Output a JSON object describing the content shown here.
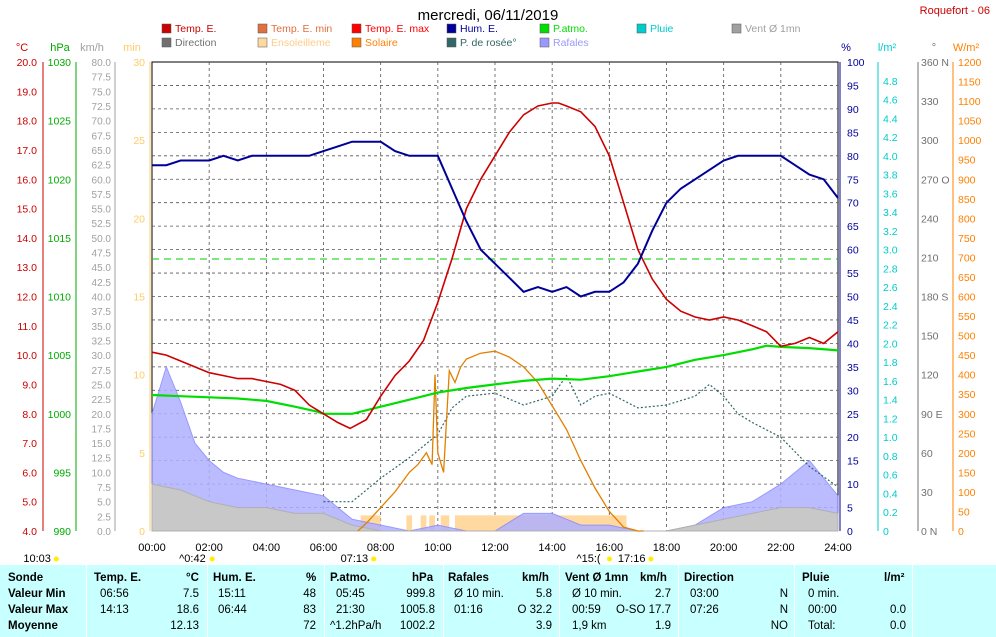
{
  "title": "mercredi, 06/11/2019",
  "station": "Roquefort - 06",
  "axes_units": {
    "temp": "°C",
    "pressure": "hPa",
    "wind": "km/h",
    "sunshine_min": "min",
    "humidity": "%",
    "rain": "l/m²",
    "direction": "°",
    "solar": "W/m²"
  },
  "legend": [
    {
      "label": "Temp. E.",
      "color": "#cc0000"
    },
    {
      "label": "Temp. E. min",
      "color": "#e07040"
    },
    {
      "label": "Temp. E. max",
      "color": "#ff0000"
    },
    {
      "label": "Hum. E.",
      "color": "#000099"
    },
    {
      "label": "P.atmo.",
      "color": "#00dd00"
    },
    {
      "label": "Pluie",
      "color": "#00cccc"
    },
    {
      "label": "Vent Ø 1mn",
      "color": "#a0a0a0"
    },
    {
      "label": "Direction",
      "color": "#707070"
    },
    {
      "label": "Ensoleilleme",
      "color": "#ffd9a0"
    },
    {
      "label": "Solaire",
      "color": "#ff8000"
    },
    {
      "label": "P. de rosée°",
      "color": "#336666"
    },
    {
      "label": "Rafales",
      "color": "#9999ff"
    }
  ],
  "colors": {
    "temp": "#cc0000",
    "hum": "#000099",
    "press": "#00dd00",
    "rain": "#00cccc",
    "solar": "#e08000",
    "sun": "#ffd9a0",
    "dew": "#336666",
    "gust": "#8888ff",
    "wind": "#b8b8b8",
    "dir": "#707070",
    "table_bg": "#c8ffff"
  },
  "chart_data": {
    "type": "line",
    "title": "mercredi, 06/11/2019",
    "grid": true,
    "x_ticks": [
      "00:00",
      "02:00",
      "04:00",
      "06:00",
      "08:00",
      "10:00",
      "12:00",
      "14:00",
      "16:00",
      "18:00",
      "20:00",
      "22:00",
      "24:00"
    ],
    "x_range_hours": [
      0,
      24
    ],
    "axes": {
      "temp_c": {
        "range": [
          4,
          20
        ],
        "ticks": [
          "20.0",
          "19.0",
          "18.0",
          "17.0",
          "16.0",
          "15.0",
          "14.0",
          "13.0",
          "12.0",
          "11.0",
          "10.0",
          "9.0",
          "8.0",
          "7.0",
          "6.0",
          "5.0",
          "4.0"
        ]
      },
      "pressure_hpa": {
        "range": [
          990,
          1030
        ],
        "ticks": [
          "1030",
          "1025",
          "1020",
          "1015",
          "1010",
          "1005",
          "1000",
          "995",
          "990"
        ]
      },
      "wind_kmh": {
        "range": [
          0,
          80
        ],
        "step": 2.5
      },
      "sunshine_min": {
        "range": [
          0,
          30
        ],
        "ticks": [
          "30",
          "25",
          "20",
          "15",
          "10",
          "5",
          "0"
        ]
      },
      "humidity_pct": {
        "range": [
          0,
          100
        ],
        "ticks": [
          "100",
          "95",
          "90",
          "85",
          "80",
          "75",
          "70",
          "65",
          "60",
          "55",
          "50",
          "45",
          "40",
          "35",
          "30",
          "25",
          "20",
          "15",
          "10",
          "5",
          "0"
        ]
      },
      "rain_lm2": {
        "range": [
          0,
          5
        ],
        "ticks": [
          "4.8",
          "4.6",
          "4.4",
          "4.2",
          "4.0",
          "3.8",
          "3.6",
          "3.4",
          "3.2",
          "3.0",
          "2.8",
          "2.6",
          "2.4",
          "2.2",
          "2.0",
          "1.8",
          "1.6",
          "1.4",
          "1.2",
          "1.0",
          "0.8",
          "0.6",
          "0.4",
          "0.2",
          "0"
        ]
      },
      "direction_deg": {
        "range": [
          0,
          360
        ],
        "ticks": [
          "360 N",
          "330",
          "300",
          "270 O",
          "240",
          "210",
          "180 S",
          "150",
          "120",
          "90 E",
          "60",
          "30",
          "0 N"
        ]
      },
      "solar_wm2": {
        "range": [
          0,
          1200
        ],
        "ticks": [
          "1200",
          "1150",
          "1100",
          "1050",
          "1000",
          "950",
          "900",
          "850",
          "800",
          "750",
          "700",
          "650",
          "600",
          "550",
          "500",
          "450",
          "400",
          "350",
          "300",
          "250",
          "200",
          "150",
          "100",
          "50",
          "0"
        ]
      }
    },
    "series": [
      {
        "name": "Temp. E.",
        "axis": "temp_c",
        "x": [
          0,
          0.5,
          1,
          1.5,
          2,
          2.5,
          3,
          3.5,
          4,
          4.5,
          5,
          5.5,
          6,
          6.5,
          6.93,
          7.5,
          8,
          8.5,
          9,
          9.5,
          10,
          10.5,
          11,
          11.5,
          12,
          12.5,
          13,
          13.5,
          14,
          14.22,
          14.5,
          15,
          15.5,
          16,
          16.5,
          17,
          17.5,
          18,
          18.5,
          19,
          19.5,
          20,
          20.5,
          21,
          21.5,
          22,
          22.5,
          23,
          23.5,
          24
        ],
        "y": [
          10.1,
          10.0,
          9.8,
          9.6,
          9.4,
          9.3,
          9.2,
          9.2,
          9.1,
          9.0,
          8.8,
          8.3,
          8.0,
          7.7,
          7.5,
          7.8,
          8.6,
          9.3,
          9.8,
          10.5,
          11.8,
          13.3,
          15.0,
          16.0,
          16.8,
          17.6,
          18.2,
          18.5,
          18.6,
          18.6,
          18.5,
          18.3,
          17.8,
          16.8,
          15.2,
          13.6,
          12.6,
          11.9,
          11.5,
          11.3,
          11.2,
          11.3,
          11.2,
          11.0,
          10.8,
          10.3,
          10.4,
          10.6,
          10.4,
          10.8
        ]
      },
      {
        "name": "Hum. E.",
        "axis": "humidity_pct",
        "x": [
          0,
          0.5,
          1,
          1.5,
          2,
          2.5,
          3,
          3.5,
          4,
          4.5,
          5,
          5.5,
          6,
          6.5,
          7,
          7.5,
          8,
          8.5,
          9,
          9.5,
          10,
          10.5,
          11,
          11.5,
          12,
          12.5,
          13,
          13.5,
          14,
          14.5,
          15,
          15.5,
          16,
          16.5,
          17,
          17.5,
          18,
          18.5,
          19,
          19.5,
          20,
          20.5,
          21,
          21.5,
          22,
          22.5,
          23,
          23.5,
          24
        ],
        "y": [
          78,
          78,
          79,
          79,
          79,
          80,
          79,
          80,
          80,
          80,
          80,
          80,
          81,
          82,
          83,
          83,
          83,
          81,
          80,
          80,
          80,
          73,
          66,
          60,
          57,
          54,
          51,
          52,
          51,
          52,
          50,
          51,
          51,
          53,
          57,
          64,
          70,
          73,
          75,
          77,
          79,
          80,
          80,
          80,
          80,
          78,
          76,
          75,
          71
        ]
      },
      {
        "name": "P.atmo.",
        "axis": "pressure_hpa",
        "x": [
          0,
          1,
          2,
          3,
          4,
          5,
          5.75,
          6,
          7,
          8,
          9,
          10,
          11,
          12,
          13,
          14,
          15,
          16,
          17,
          18,
          19,
          20,
          21,
          21.5,
          22,
          23,
          24
        ],
        "y": [
          1001.6,
          1001.5,
          1001.4,
          1001.3,
          1001.1,
          1000.6,
          1000.2,
          1000.0,
          1000.0,
          1000.6,
          1001.2,
          1001.8,
          1002.2,
          1002.5,
          1002.8,
          1003.0,
          1002.9,
          1003.2,
          1003.6,
          1004.0,
          1004.6,
          1005.0,
          1005.5,
          1005.8,
          1005.7,
          1005.6,
          1005.4
        ]
      },
      {
        "name": "Solaire",
        "axis": "solar_wm2",
        "x": [
          7.2,
          7.5,
          8,
          8.5,
          9,
          9.3,
          9.6,
          9.8,
          9.9,
          10.0,
          10.2,
          10.4,
          10.6,
          10.8,
          11.0,
          11.5,
          12,
          12.5,
          13,
          13.5,
          14,
          14.5,
          15,
          15.5,
          16,
          16.5,
          17,
          17.2
        ],
        "y": [
          0,
          20,
          60,
          100,
          150,
          170,
          200,
          170,
          400,
          200,
          150,
          410,
          380,
          420,
          440,
          455,
          460,
          445,
          420,
          380,
          320,
          260,
          180,
          110,
          50,
          10,
          0,
          0
        ]
      },
      {
        "name": "P. de rosée°",
        "axis": "temp_c",
        "x": [
          6,
          7,
          8,
          9,
          10,
          10.5,
          11,
          12,
          13,
          14,
          14.5,
          15,
          15.5,
          16,
          17,
          18,
          19,
          19.5,
          20,
          20.5,
          21,
          22,
          23,
          24
        ],
        "y": [
          5.0,
          5.0,
          5.8,
          6.5,
          7.3,
          8.2,
          8.6,
          8.7,
          8.3,
          8.6,
          9.3,
          8.3,
          8.6,
          8.7,
          8.2,
          8.3,
          8.6,
          9.0,
          8.6,
          8.0,
          7.7,
          7.2,
          6.2,
          5.5
        ]
      },
      {
        "name": "Ensoleilleme",
        "axis": "sunshine_min",
        "x_start": [
          7.3,
          8.9,
          9.4,
          9.7,
          10.1,
          10.6
        ],
        "x_end": [
          8.0,
          9.1,
          9.6,
          9.9,
          10.4,
          16.6
        ],
        "y": [
          1,
          1,
          1,
          1,
          1,
          1
        ]
      },
      {
        "name": "Vent Ø 1mn",
        "axis": "wind_kmh",
        "x": [
          0,
          1,
          2,
          3,
          4,
          5,
          6,
          7,
          8,
          9,
          10,
          11,
          12,
          13,
          14,
          15,
          16,
          17,
          18,
          19,
          20,
          21,
          22,
          23,
          24
        ],
        "y": [
          8,
          7,
          5,
          4,
          4,
          3,
          3,
          1,
          0,
          0,
          0,
          0,
          0,
          0,
          0,
          0,
          0,
          0,
          0,
          1,
          2,
          3,
          4,
          4,
          3
        ]
      },
      {
        "name": "Rafales",
        "axis": "wind_kmh",
        "x": [
          0,
          0.5,
          1,
          1.5,
          2,
          2.5,
          3,
          4,
          5,
          6,
          7,
          8,
          9,
          10,
          11,
          12,
          13,
          14,
          15,
          16,
          17,
          18,
          19,
          20,
          21,
          22,
          23,
          24
        ],
        "y": [
          20,
          28,
          22,
          15,
          12,
          10,
          9,
          8,
          7,
          6,
          2,
          1,
          0,
          1,
          0,
          0,
          3,
          3,
          1,
          1,
          0,
          0,
          1,
          4,
          5,
          8,
          12,
          6
        ]
      }
    ]
  },
  "date_marks": [
    {
      "label": "10:03",
      "x_hour": -4.5
    },
    {
      "label": "^0:42",
      "x_hour": 0.95
    },
    {
      "label": "07:13",
      "x_hour": 6.6
    },
    {
      "label": "^15:(",
      "x_hour": 14.85
    },
    {
      "label": "17:16",
      "x_hour": 16.3
    }
  ],
  "table": {
    "headers": [
      "Sonde",
      "Temp. E.",
      "°C",
      "Hum. E.",
      "%",
      "P.atmo.",
      "hPa",
      "Rafales",
      "km/h",
      "Vent Ø 1mn",
      "km/h",
      "Direction",
      "Pluie",
      "l/m²"
    ],
    "rows": [
      {
        "label": "Valeur Min",
        "t_time": "06:56",
        "t_val": "7.5",
        "h_time": "15:11",
        "h_val": "48",
        "p_time": "05:45",
        "p_val": "999.8",
        "r_time": "Ø 10 min.",
        "r_val": "5.8",
        "v_time": "Ø 10 min.",
        "v_val": "2.7",
        "d_time": "03:00",
        "d_val": "N",
        "pl_time": "0 min.",
        "pl_val": ""
      },
      {
        "label": "Valeur Max",
        "t_time": "14:13",
        "t_val": "18.6",
        "h_time": "06:44",
        "h_val": "83",
        "p_time": "21:30",
        "p_val": "1005.8",
        "r_time": "01:16",
        "r_val": "O 32.2",
        "v_time": "00:59",
        "v_val": "O-SO 17.7",
        "d_time": "07:26",
        "d_val": "N",
        "pl_time": "00:00",
        "pl_val": "0.0"
      },
      {
        "label": "Moyenne",
        "t_time": "",
        "t_val": "12.13",
        "h_time": "",
        "h_val": "72",
        "p_time": "^1.2hPa/h",
        "p_val": "1002.2",
        "r_time": "",
        "r_val": "3.9",
        "v_time": "1,9 km",
        "v_val": "1.9",
        "d_time": "",
        "d_val": "NO",
        "pl_time": "Total:",
        "pl_val": "0.0"
      }
    ]
  }
}
